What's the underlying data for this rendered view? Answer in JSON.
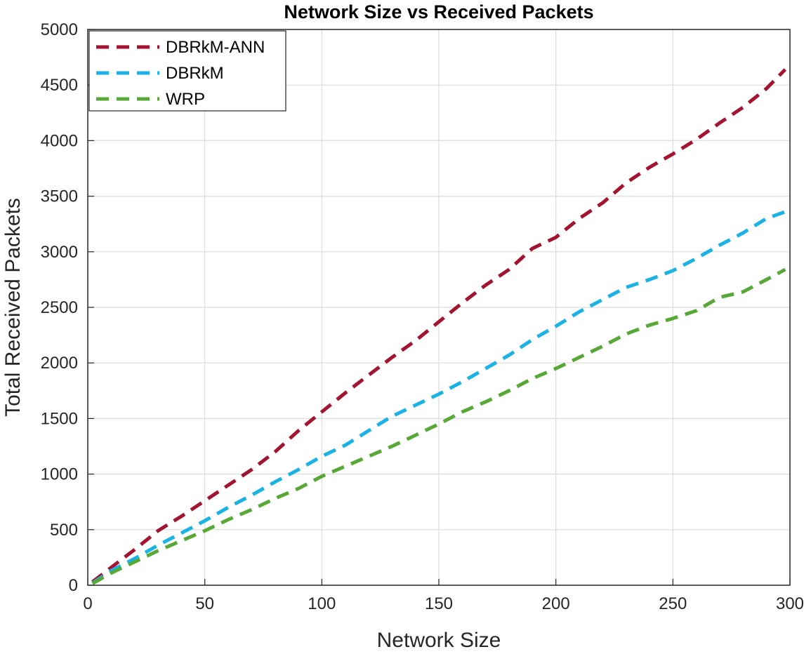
{
  "chart_data": {
    "type": "line",
    "title": "Network Size vs Received Packets",
    "xlabel": "Network Size",
    "ylabel": "Total Received Packets",
    "xlim": [
      0,
      300
    ],
    "ylim": [
      0,
      5000
    ],
    "xticks": [
      0,
      50,
      100,
      150,
      200,
      250,
      300
    ],
    "yticks": [
      0,
      500,
      1000,
      1500,
      2000,
      2500,
      3000,
      3500,
      4000,
      4500,
      5000
    ],
    "grid": true,
    "legend_position": "top-left",
    "x": [
      2,
      10,
      20,
      30,
      40,
      50,
      60,
      70,
      80,
      90,
      100,
      110,
      120,
      130,
      140,
      150,
      160,
      170,
      180,
      190,
      200,
      210,
      220,
      230,
      240,
      250,
      260,
      270,
      280,
      290,
      298
    ],
    "series": [
      {
        "name": "DBRkM-ANN",
        "color": "#a2142f",
        "values": [
          30,
          160,
          320,
          490,
          620,
          760,
          900,
          1040,
          1200,
          1390,
          1560,
          1730,
          1890,
          2050,
          2200,
          2370,
          2540,
          2700,
          2840,
          3030,
          3130,
          3300,
          3440,
          3620,
          3760,
          3880,
          4010,
          4160,
          4300,
          4470,
          4640
        ]
      },
      {
        "name": "DBRkM",
        "color": "#1bb2e5",
        "values": [
          20,
          130,
          240,
          360,
          470,
          580,
          700,
          810,
          930,
          1040,
          1160,
          1260,
          1390,
          1520,
          1620,
          1720,
          1830,
          1950,
          2070,
          2210,
          2330,
          2460,
          2570,
          2680,
          2750,
          2830,
          2940,
          3060,
          3170,
          3300,
          3360
        ]
      },
      {
        "name": "WRP",
        "color": "#58a838",
        "values": [
          15,
          110,
          210,
          310,
          400,
          490,
          590,
          680,
          780,
          870,
          980,
          1070,
          1160,
          1250,
          1350,
          1450,
          1560,
          1650,
          1750,
          1860,
          1950,
          2050,
          2150,
          2260,
          2340,
          2400,
          2470,
          2590,
          2640,
          2750,
          2840
        ]
      }
    ]
  }
}
